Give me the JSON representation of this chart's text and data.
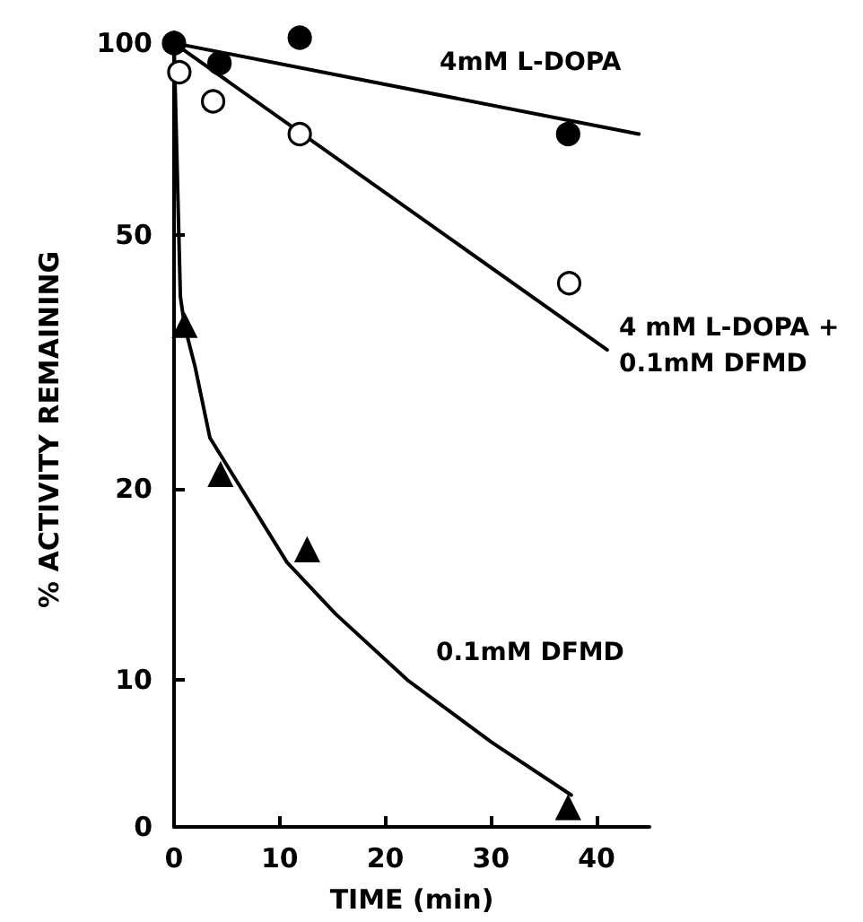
{
  "chart_data": {
    "type": "scatter",
    "xlabel": "TIME (min)",
    "ylabel": "% ACTIVITY REMAINING",
    "xlim": [
      0,
      45
    ],
    "xticks": [
      0,
      10,
      20,
      30,
      40
    ],
    "ylim": [
      0,
      104
    ],
    "yticks": [
      0,
      10,
      20,
      50,
      100
    ],
    "log": "y",
    "grid": false,
    "series": [
      {
        "type": "line",
        "color": "#000000",
        "marker": "none",
        "x": [
          0,
          44
        ],
        "values": [
          100,
          72
        ]
      },
      {
        "type": "line",
        "color": "#000000",
        "marker": "none",
        "x": [
          0,
          41
        ],
        "values": [
          100,
          33
        ]
      },
      {
        "type": "line",
        "color": "#000000",
        "marker": "none",
        "x": [
          0,
          0.6,
          1,
          2,
          3.4,
          10.7,
          15.3,
          22.1,
          30,
          37.6
        ],
        "values": [
          100,
          40,
          36,
          31,
          24,
          15.3,
          12.7,
          10,
          8,
          6.6
        ]
      },
      {
        "color": "#000000",
        "marker": "circle",
        "x": [
          0,
          4.3,
          11.9,
          37.3
        ],
        "values": [
          100,
          93,
          102,
          72
        ]
      },
      {
        "color": "#ffffff",
        "marker": "circle",
        "x": [
          0.5,
          3.7,
          11.9,
          37.4
        ],
        "values": [
          90,
          81,
          72,
          42
        ]
      },
      {
        "color": "#000000",
        "marker": "triangle",
        "x": [
          1,
          4.4,
          12.6,
          37.3
        ],
        "values": [
          36,
          21,
          16,
          6.3
        ]
      }
    ],
    "annotations": [
      "4mM L-DOPA",
      "4 mM L-DOPA +\n0.1mM DFMD",
      "0.1mM DFMD"
    ]
  }
}
